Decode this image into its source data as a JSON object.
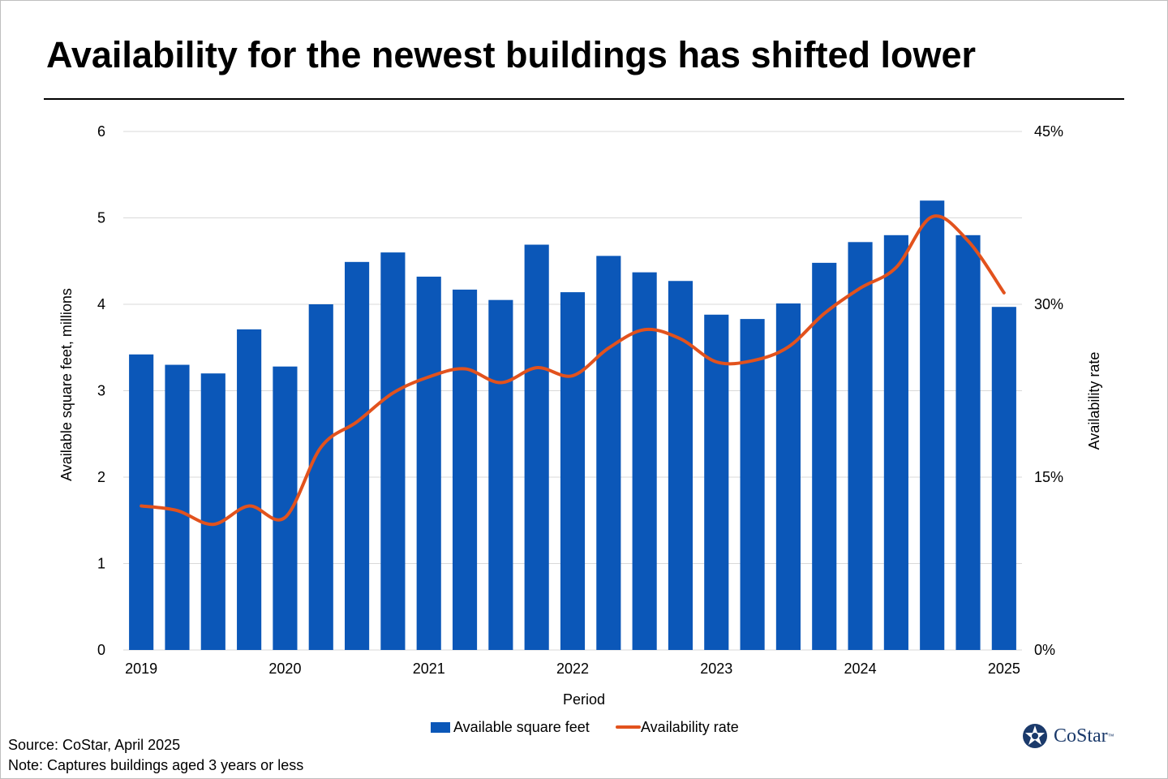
{
  "title": "Availability for the newest buildings has shifted lower",
  "footer": {
    "source": "Source: CoStar, April 2025",
    "note": "Note: Captures buildings aged 3 years or less"
  },
  "logo": {
    "text": "CoStar",
    "tm": "™"
  },
  "colors": {
    "bar": "#0b57b8",
    "line": "#e2521d",
    "grid": "#d9d9d9",
    "text": "#000000"
  },
  "chart_data": {
    "type": "bar",
    "title": "Availability for the newest buildings has shifted lower",
    "xlabel": "Period",
    "ylabel": "Available square feet, millions",
    "y2label": "Availability rate",
    "ylim": [
      0,
      6
    ],
    "y2lim": [
      0,
      45
    ],
    "yticks": [
      "0",
      "1",
      "2",
      "3",
      "4",
      "5",
      "6"
    ],
    "y2ticks": [
      "0%",
      "15%",
      "30%",
      "45%"
    ],
    "year_labels": [
      {
        "label": "2019",
        "index": 0
      },
      {
        "label": "2020",
        "index": 4
      },
      {
        "label": "2021",
        "index": 8
      },
      {
        "label": "2022",
        "index": 12
      },
      {
        "label": "2023",
        "index": 16
      },
      {
        "label": "2024",
        "index": 20
      },
      {
        "label": "2025",
        "index": 24
      }
    ],
    "series": [
      {
        "name": "Available square feet",
        "type": "bar",
        "axis": "left",
        "values": [
          3.42,
          3.3,
          3.2,
          3.71,
          3.28,
          4.0,
          4.49,
          4.6,
          4.32,
          4.17,
          4.05,
          4.69,
          4.14,
          4.56,
          4.37,
          4.27,
          3.88,
          3.83,
          4.01,
          4.48,
          4.72,
          4.8,
          5.2,
          4.8,
          3.97
        ]
      },
      {
        "name": "Availability rate",
        "type": "line",
        "axis": "right",
        "unit": "%",
        "values": [
          12.5,
          12.1,
          10.9,
          12.5,
          11.5,
          17.6,
          19.8,
          22.3,
          23.7,
          24.4,
          23.2,
          24.5,
          23.8,
          26.2,
          27.8,
          27.0,
          25.0,
          25.1,
          26.3,
          29.2,
          31.4,
          33.2,
          37.6,
          35.5,
          31.0
        ]
      }
    ],
    "legend": [
      "Available square feet",
      "Availability rate"
    ],
    "legend_position": "bottom"
  }
}
